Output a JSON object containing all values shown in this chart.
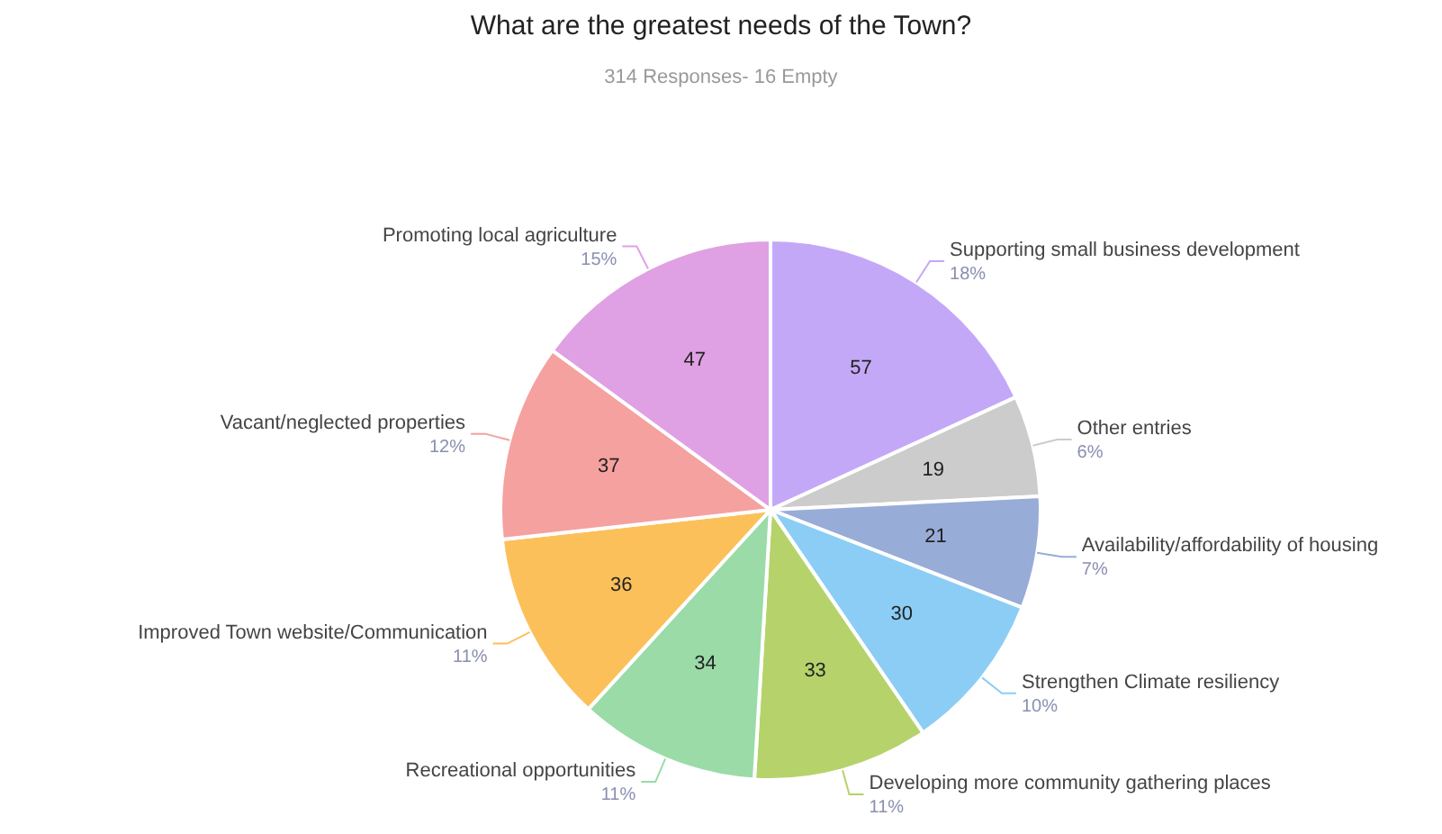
{
  "chart_data": {
    "type": "pie",
    "title": "What are the greatest needs of the Town?",
    "subtitle": "314 Responses- 16 Empty",
    "categories": [
      "Supporting small business development",
      "Other entries",
      "Availability/affordability of housing",
      "Strengthen Climate resiliency",
      "Developing more community gathering places",
      "Recreational opportunities",
      "Improved Town website/Communication",
      "Vacant/neglected properties",
      "Promoting local agriculture"
    ],
    "values": [
      57,
      19,
      21,
      30,
      33,
      34,
      36,
      37,
      47
    ],
    "colors": [
      "#c4a8f8",
      "#cccccc",
      "#98acd8",
      "#8ccdf5",
      "#b5d36a",
      "#9adba8",
      "#fcc05a",
      "#f5a1a0",
      "#dfa1e3"
    ],
    "data_labels": true,
    "annotations": [
      {
        "text": "18%",
        "x": "Supporting small business development"
      },
      {
        "text": "6%",
        "x": "Other entries"
      },
      {
        "text": "7%",
        "x": "Availability/affordability of housing"
      },
      {
        "text": "10%",
        "x": "Strengthen Climate resiliency"
      },
      {
        "text": "11%",
        "x": "Developing more community gathering places"
      },
      {
        "text": "11%",
        "x": "Recreational opportunities"
      },
      {
        "text": "11%",
        "x": "Improved Town website/Communication"
      },
      {
        "text": "12%",
        "x": "Vacant/neglected properties"
      },
      {
        "text": "15%",
        "x": "Promoting local agriculture"
      }
    ],
    "legend": false
  }
}
